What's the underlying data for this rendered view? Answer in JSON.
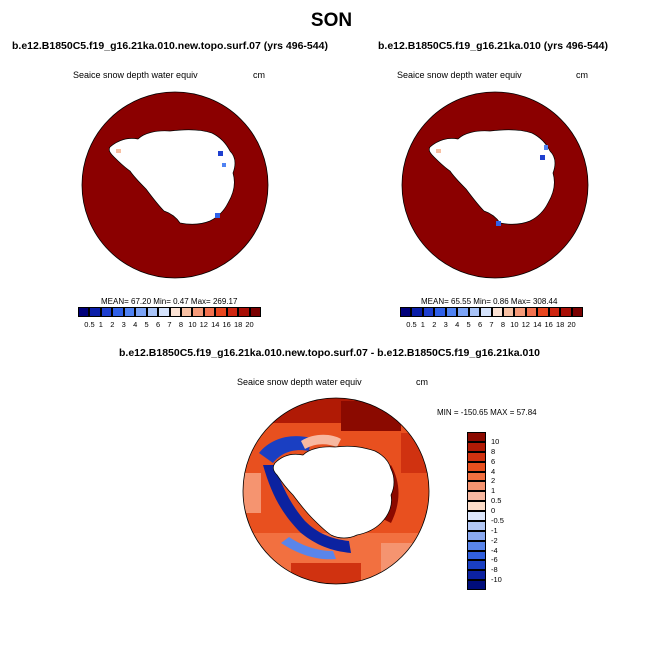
{
  "title": "SON",
  "panels": [
    {
      "case": "b.e12.B1850C5.f19_g16.21ka.010.new.topo.surf.07 (yrs 496-544)",
      "variable": "Seaice snow depth water equiv",
      "unit": "cm",
      "mean_label": "MEAN=",
      "mean": "67.20",
      "min_label": "Min=",
      "min": "0.47",
      "max_label": "Max=",
      "max": "269.17"
    },
    {
      "case": "b.e12.B1850C5.f19_g16.21ka.010 (yrs 496-544)",
      "variable": "Seaice snow depth water equiv",
      "unit": "cm",
      "mean_label": "MEAN=",
      "mean": "65.55",
      "min_label": "Min=",
      "min": "0.86",
      "max_label": "Max=",
      "max": "308.44"
    }
  ],
  "top_colorbar": {
    "ticks": [
      "0.5",
      "1",
      "2",
      "3",
      "4",
      "5",
      "6",
      "7",
      "8",
      "10",
      "12",
      "14",
      "16",
      "18",
      "20"
    ],
    "colors": [
      "#00007a",
      "#0a1ea8",
      "#1e3fcf",
      "#2f60e8",
      "#4f82f2",
      "#7ba3f5",
      "#a8c3f7",
      "#d4e2fb",
      "#fbe2d4",
      "#f7c0a3",
      "#f59a79",
      "#f2714f",
      "#e8461f",
      "#cf2611",
      "#a80e05",
      "#7a0000"
    ]
  },
  "diff_panel": {
    "case": "b.e12.B1850C5.f19_g16.21ka.010.new.topo.surf.07 - b.e12.B1850C5.f19_g16.21ka.010",
    "variable": "Seaice snow depth water equiv",
    "unit": "cm",
    "stats": "MIN = -150.65 MAX =  57.84"
  },
  "diff_colorbar": {
    "ticks": [
      "10",
      "8",
      "6",
      "4",
      "2",
      "1",
      "0.5",
      "0",
      "-0.5",
      "-1",
      "-2",
      "-4",
      "-6",
      "-8",
      "-10"
    ],
    "colors": [
      "#8b0a00",
      "#b01a05",
      "#d03210",
      "#e8501f",
      "#f27040",
      "#f59470",
      "#f7b8a0",
      "#fbdcc8",
      "#dce6fb",
      "#b3c8f5",
      "#8aa9f0",
      "#5a85ea",
      "#3260dd",
      "#1a3fc2",
      "#0c22a0",
      "#000d7a"
    ]
  }
}
